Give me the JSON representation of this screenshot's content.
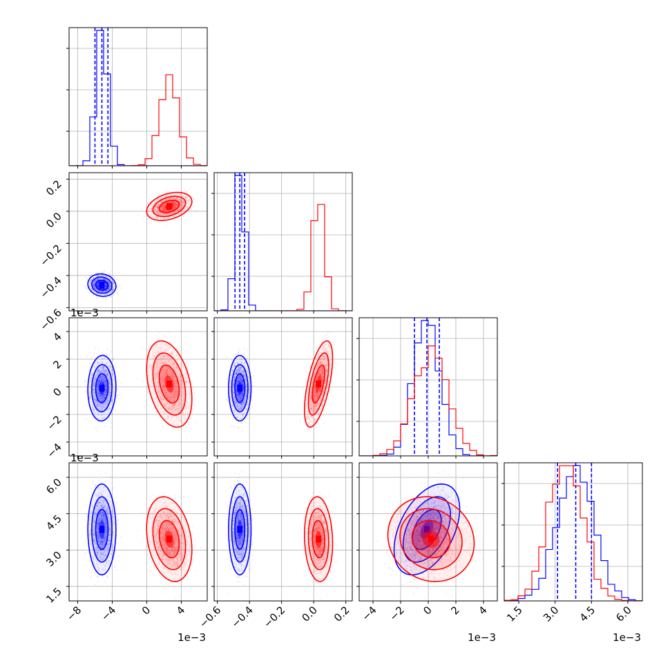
{
  "colors": {
    "series_a": "#0000ff",
    "series_b": "#ff0000",
    "grid": "#b0b0b0",
    "frame": "#000000",
    "background": "#ffffff"
  },
  "chart_data": {
    "type": "corner",
    "grid": true,
    "parameters": [
      {
        "range": [
          -9.0,
          7.0
        ],
        "ticks": [
          -8,
          -4,
          0,
          4
        ],
        "tick_labels": [
          "−8",
          "−4",
          "0",
          "4"
        ],
        "offset_label": "1e−3"
      },
      {
        "range": [
          -0.62,
          0.24
        ],
        "ticks": [
          -0.6,
          -0.4,
          -0.2,
          0.0,
          0.2
        ],
        "tick_labels": [
          "−0.6",
          "−0.4",
          "−0.2",
          "0.0",
          "0.2"
        ],
        "offset_label": ""
      },
      {
        "range": [
          -5.0,
          5.0
        ],
        "ticks": [
          -4,
          -2,
          0,
          2,
          4
        ],
        "tick_labels": [
          "−4",
          "−2",
          "0",
          "2",
          "4"
        ],
        "offset_label": "1e−3"
      },
      {
        "range": [
          0.9,
          6.6
        ],
        "ticks": [
          1.5,
          3.0,
          4.5,
          6.0
        ],
        "tick_labels": [
          "1.5",
          "3.0",
          "4.5",
          "6.0"
        ],
        "offset_label": "1e−3"
      }
    ],
    "series": [
      {
        "color_key": "series_a",
        "mean": [
          -5.2,
          -0.46,
          -0.1,
          3.85
        ],
        "sd": [
          0.65,
          0.028,
          0.95,
          0.75
        ],
        "corr": [
          [
            0,
            1,
            -0.1
          ],
          [
            0,
            2,
            0.05
          ],
          [
            0,
            3,
            0.0
          ],
          [
            1,
            2,
            0.0
          ],
          [
            1,
            3,
            0.0
          ],
          [
            2,
            3,
            0.45
          ]
        ],
        "quantile_lines": [
          [
            -6.0,
            -5.2,
            -4.5
          ],
          [
            -0.49,
            -0.46,
            -0.43
          ],
          [
            -1.0,
            -0.1,
            0.8
          ],
          [
            3.1,
            3.85,
            4.5
          ]
        ]
      },
      {
        "color_key": "series_b",
        "mean": [
          2.6,
          0.03,
          0.2,
          3.45
        ],
        "sd": [
          1.05,
          0.035,
          1.25,
          0.7
        ],
        "corr": [
          [
            0,
            1,
            0.35
          ],
          [
            0,
            2,
            -0.35
          ],
          [
            0,
            3,
            -0.25
          ],
          [
            1,
            2,
            0.6
          ],
          [
            1,
            3,
            -0.1
          ],
          [
            2,
            3,
            -0.1
          ]
        ],
        "quantile_lines": null
      }
    ]
  }
}
